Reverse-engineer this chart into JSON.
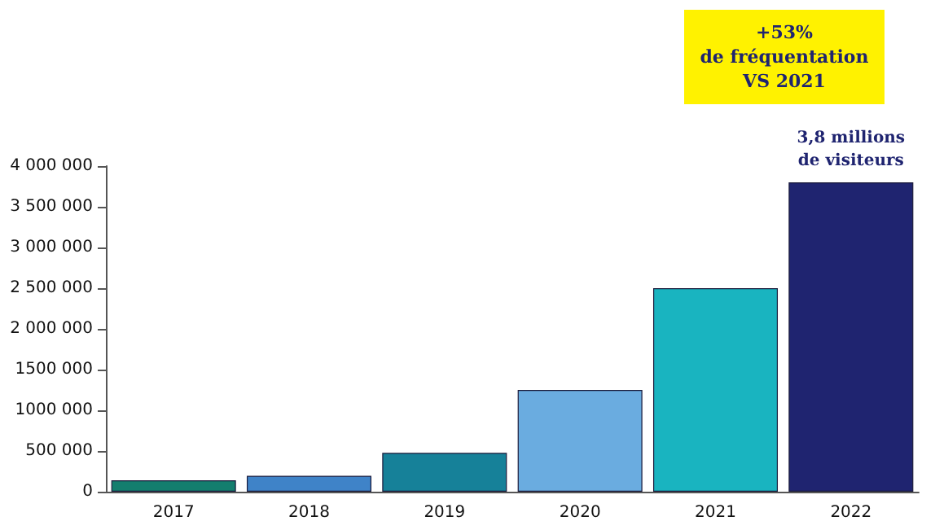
{
  "chart_data": {
    "type": "bar",
    "categories": [
      "2017",
      "2018",
      "2019",
      "2020",
      "2021",
      "2022"
    ],
    "values": [
      140000,
      195000,
      477000,
      1250000,
      2500000,
      3800000
    ],
    "colors": [
      "#137e6e",
      "#3f83c8",
      "#168199",
      "#6aace0",
      "#19b4c0",
      "#1f2470"
    ],
    "ylim": [
      0,
      4000000
    ],
    "yticks": [
      {
        "value": 0,
        "label": "0"
      },
      {
        "value": 500000,
        "label": "500 000"
      },
      {
        "value": 1000000,
        "label": "1000 000"
      },
      {
        "value": 1500000,
        "label": "1500 000"
      },
      {
        "value": 2000000,
        "label": "2 000 000"
      },
      {
        "value": 2500000,
        "label": "2 500 000"
      },
      {
        "value": 3000000,
        "label": "3 000 000"
      },
      {
        "value": 3500000,
        "label": "3 500 000"
      },
      {
        "value": 4000000,
        "label": "4 000 000"
      }
    ],
    "grid": false,
    "annotations": [
      "+53%\nde fréquentation\nVS 2021",
      {
        "text": "3,8 millions\nde visiteurs",
        "x": "2022",
        "y": 3800000
      }
    ]
  }
}
